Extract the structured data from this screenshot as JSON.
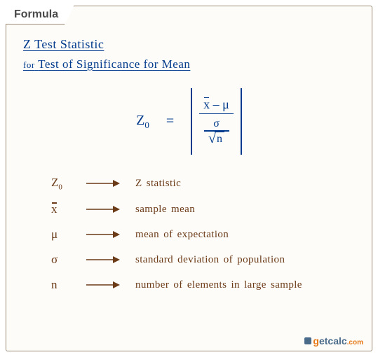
{
  "tab_label": "Formula",
  "title": {
    "main": "Z Test Statistic",
    "sub_prefix": "for",
    "sub_rest": "Test of Significance for Mean"
  },
  "formula": {
    "lhs_base": "Z",
    "lhs_sub": "0",
    "eq": "=",
    "numerator_left": "x",
    "numerator_op": " – ",
    "numerator_right": "μ",
    "denom_top": "σ",
    "denom_sqrt_arg": "n",
    "colors": {
      "text": "#003a8c"
    }
  },
  "legend": [
    {
      "sym_base": "Z",
      "sym_sub": "0",
      "has_bar": false,
      "desc": "Z statistic"
    },
    {
      "sym_base": "x",
      "sym_sub": "",
      "has_bar": true,
      "desc": "sample mean"
    },
    {
      "sym_base": "μ",
      "sym_sub": "",
      "has_bar": false,
      "desc": "mean of expectation"
    },
    {
      "sym_base": "σ",
      "sym_sub": "",
      "has_bar": false,
      "desc": "standard deviation of population"
    },
    {
      "sym_base": "n",
      "sym_sub": "",
      "has_bar": false,
      "desc": "number of elements in large sample"
    }
  ],
  "legend_style": {
    "color": "#6b3a17",
    "arrow": {
      "width": 48,
      "height": 10,
      "stroke": "#6b3a17",
      "stroke_width": 1.6
    }
  },
  "logo": {
    "g": "g",
    "rest": "etcalc",
    "suffix": ".com"
  }
}
